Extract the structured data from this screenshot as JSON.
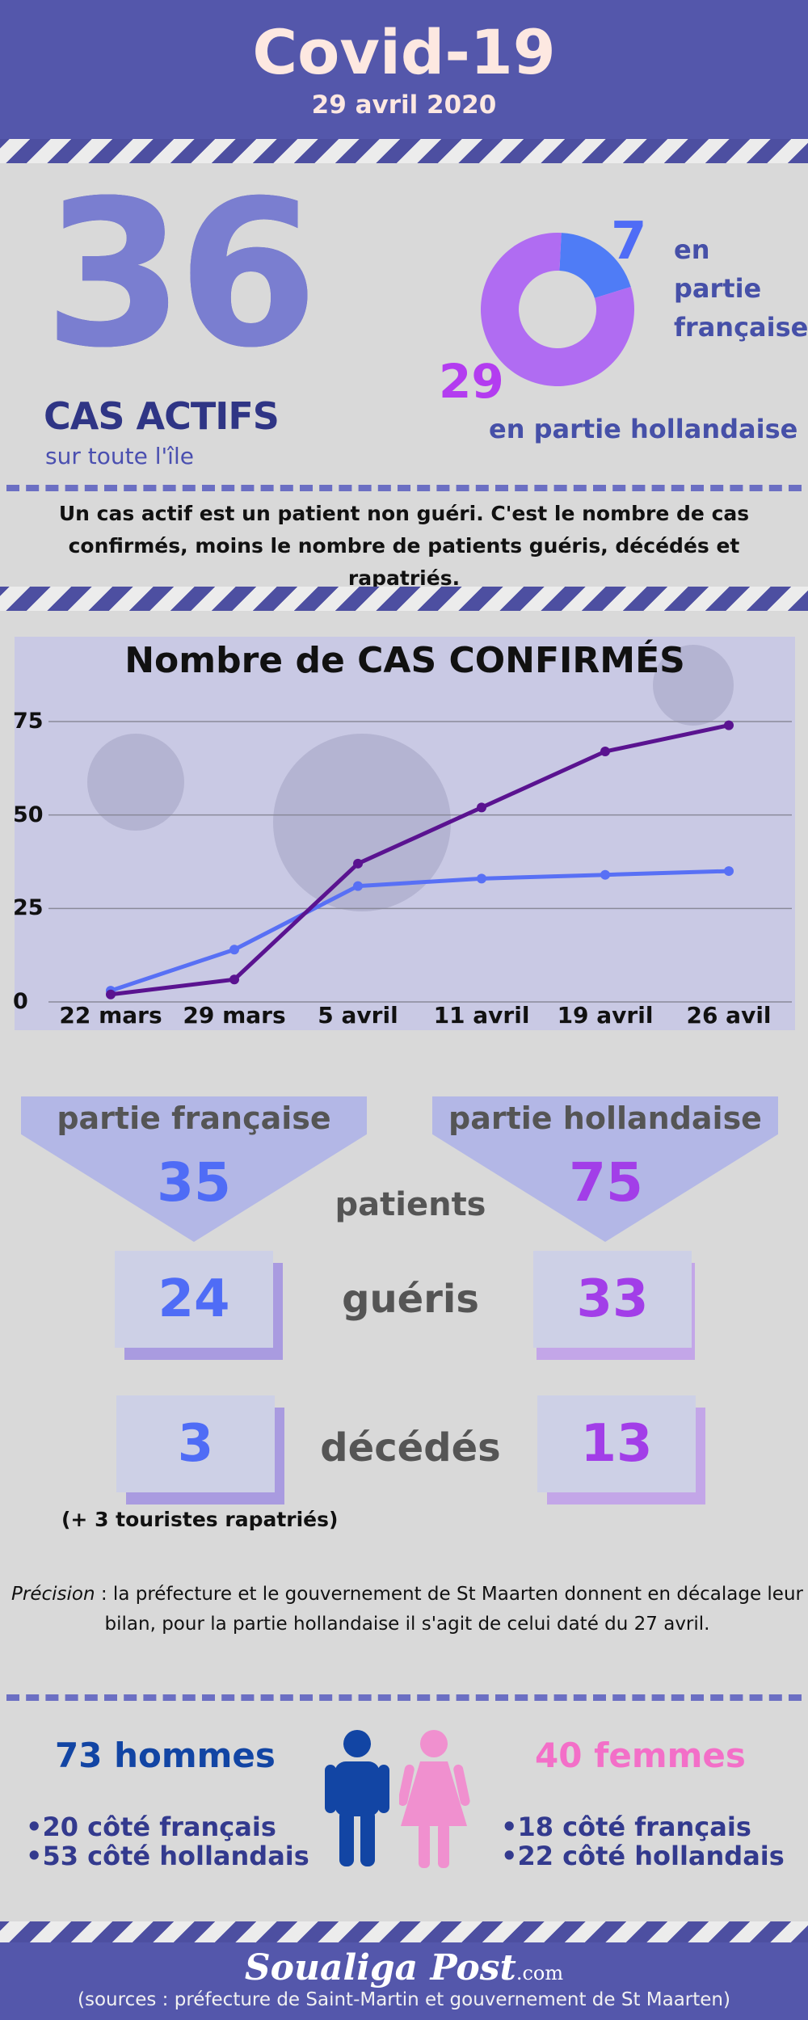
{
  "header": {
    "title": "Covid-19",
    "date": "29 avril 2020"
  },
  "active": {
    "number": "36",
    "label": "CAS ACTIFS",
    "sublabel": "sur toute l'île",
    "french_count": "7",
    "french_label": "en partie française",
    "dutch_count": "29",
    "dutch_label": "en partie hollandaise",
    "donut": [
      {
        "name": "en partie française",
        "value": 7,
        "color": "#4f7cf6"
      },
      {
        "name": "en partie hollandaise",
        "value": 29,
        "color": "#b06cf2"
      }
    ]
  },
  "definition": "Un cas actif est un patient non guéri. C'est le nombre de cas confirmés, moins le nombre de patients guéris, décédés et rapatriés.",
  "chart_data": {
    "type": "line",
    "title": "Nombre de CAS CONFIRMÉS",
    "categories": [
      "22 mars",
      "29 mars",
      "5 avril",
      "11 avril",
      "19 avril",
      "26 avil"
    ],
    "yticks": [
      "0",
      "25",
      "50",
      "75"
    ],
    "ylim": [
      0,
      75
    ],
    "grid": true,
    "series": [
      {
        "color": "#5870f5",
        "values": [
          3,
          14,
          31,
          33,
          34,
          35
        ]
      },
      {
        "color": "#5a1390",
        "values": [
          2,
          6,
          37,
          52,
          67,
          74
        ]
      }
    ]
  },
  "stats": {
    "french_header": "partie française",
    "dutch_header": "partie hollandaise",
    "rows": [
      {
        "label": "patients",
        "french": "35",
        "dutch": "75"
      },
      {
        "label": "guéris",
        "french": "24",
        "dutch": "33"
      },
      {
        "label": "décédés",
        "french": "3",
        "dutch": "13"
      }
    ],
    "note": "(+ 3 touristes rapatriés)"
  },
  "precision": {
    "lead": "Précision",
    "text": " : la préfecture et le gouvernement de St Maarten donnent en décalage leur bilan, pour la partie hollandaise il s'agit de celui daté du 27 avril."
  },
  "gender": {
    "men_title": "73 hommes",
    "men_items": [
      "20 côté français",
      "53 côté hollandais"
    ],
    "women_title": "40 femmes",
    "women_items": [
      "18 côté français",
      "22 côté hollandais"
    ],
    "men_color": "#1245a4",
    "women_color": "#f090cf"
  },
  "footer": {
    "logo": "Soualiga Post",
    "logo_suffix": ".com",
    "sources": "(sources : préfecture de Saint-Martin et gouvernement de St Maarten)"
  }
}
